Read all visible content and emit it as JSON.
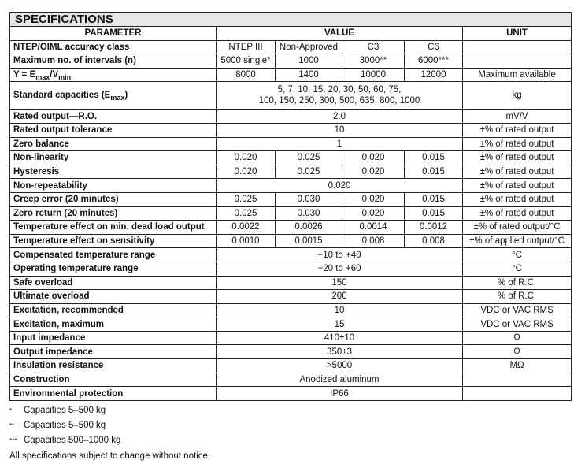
{
  "title": "SPECIFICATIONS",
  "headers": {
    "parameter": "PARAMETER",
    "value": "VALUE",
    "unit": "UNIT"
  },
  "rows": [
    {
      "param": [
        {
          "t": "NTEP/OIML accuracy class"
        }
      ],
      "values": [
        "NTEP III",
        "Non-Approved",
        "C3",
        "C6"
      ],
      "unit": ""
    },
    {
      "param": [
        {
          "t": "Maximum no. of intervals (n)"
        }
      ],
      "values": [
        "5000 single*",
        "1000",
        "3000**",
        "6000***"
      ],
      "unit": ""
    },
    {
      "param": [
        {
          "t": "Y = E"
        },
        {
          "sub": "max"
        },
        {
          "t": "/V"
        },
        {
          "sub": "min"
        }
      ],
      "values": [
        "8000",
        "1400",
        "10000",
        "12000"
      ],
      "unit": "Maximum available"
    },
    {
      "param": [
        {
          "t": "Standard capacities (E"
        },
        {
          "sub": "max"
        },
        {
          "t": ")"
        }
      ],
      "values": [
        "5, 7, 10, 15, 20, 30, 50, 60, 75,\n100, 150, 250, 300, 500, 635, 800, 1000"
      ],
      "unit": "kg",
      "tall": true
    },
    {
      "param": [
        {
          "t": "Rated output—R.O."
        }
      ],
      "values": [
        "2.0"
      ],
      "unit": "mV/V"
    },
    {
      "param": [
        {
          "t": "Rated output tolerance"
        }
      ],
      "values": [
        "10"
      ],
      "unit": "±% of rated output"
    },
    {
      "param": [
        {
          "t": "Zero balance"
        }
      ],
      "values": [
        "1"
      ],
      "unit": "±% of rated output"
    },
    {
      "param": [
        {
          "t": "Non-linearity"
        }
      ],
      "values": [
        "0.020",
        "0.025",
        "0.020",
        "0.015"
      ],
      "unit": "±% of rated output"
    },
    {
      "param": [
        {
          "t": "Hysteresis"
        }
      ],
      "values": [
        "0.020",
        "0.025",
        "0.020",
        "0.015"
      ],
      "unit": "±% of rated output"
    },
    {
      "param": [
        {
          "t": "Non-repeatability"
        }
      ],
      "values": [
        "0.020"
      ],
      "unit": "±% of rated output"
    },
    {
      "param": [
        {
          "t": "Creep error (20 minutes)"
        }
      ],
      "values": [
        "0.025",
        "0.030",
        "0.020",
        "0.015"
      ],
      "unit": "±% of rated output"
    },
    {
      "param": [
        {
          "t": "Zero return (20 minutes)"
        }
      ],
      "values": [
        "0.025",
        "0.030",
        "0.020",
        "0.015"
      ],
      "unit": "±% of rated output"
    },
    {
      "param": [
        {
          "t": "Temperature effect on min. dead load output"
        }
      ],
      "values": [
        "0.0022",
        "0.0026",
        "0.0014",
        "0.0012"
      ],
      "unit": "±% of rated output/°C"
    },
    {
      "param": [
        {
          "t": "Temperature effect on sensitivity"
        }
      ],
      "values": [
        "0.0010",
        "0.0015",
        "0.008",
        "0.008"
      ],
      "unit": "±% of applied output/°C"
    },
    {
      "param": [
        {
          "t": "Compensated temperature range"
        }
      ],
      "values": [
        "−10 to +40"
      ],
      "unit": "°C"
    },
    {
      "param": [
        {
          "t": "Operating temperature range"
        }
      ],
      "values": [
        "−20 to +60"
      ],
      "unit": "°C"
    },
    {
      "param": [
        {
          "t": "Safe overload"
        }
      ],
      "values": [
        "150"
      ],
      "unit": "% of R.C."
    },
    {
      "param": [
        {
          "t": "Ultimate overload"
        }
      ],
      "values": [
        "200"
      ],
      "unit": "% of R.C."
    },
    {
      "param": [
        {
          "t": "Excitation, recommended"
        }
      ],
      "values": [
        "10"
      ],
      "unit": "VDC or VAC RMS"
    },
    {
      "param": [
        {
          "t": "Excitation, maximum"
        }
      ],
      "values": [
        "15"
      ],
      "unit": "VDC or VAC RMS"
    },
    {
      "param": [
        {
          "t": "Input impedance"
        }
      ],
      "values": [
        "410±10"
      ],
      "unit": "Ω"
    },
    {
      "param": [
        {
          "t": "Output impedance"
        }
      ],
      "values": [
        "350±3"
      ],
      "unit": "Ω"
    },
    {
      "param": [
        {
          "t": "Insulation resistance"
        }
      ],
      "values": [
        ">5000"
      ],
      "unit": "MΩ"
    },
    {
      "param": [
        {
          "t": "Construction"
        }
      ],
      "values": [
        "Anodized aluminum"
      ],
      "unit": ""
    },
    {
      "param": [
        {
          "t": "Environmental protection"
        }
      ],
      "values": [
        "IP66"
      ],
      "unit": ""
    }
  ],
  "footnotes": [
    {
      "mark": "*",
      "text": "Capacities 5–500 kg"
    },
    {
      "mark": "**",
      "text": "Capacities 5–500 kg"
    },
    {
      "mark": "***",
      "text": "Capacities 500–1000 kg"
    }
  ],
  "disclaimer": "All specifications subject to change without notice."
}
